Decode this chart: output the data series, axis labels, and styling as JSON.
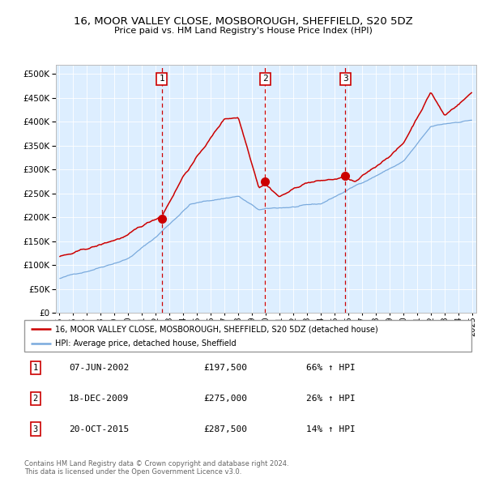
{
  "title1": "16, MOOR VALLEY CLOSE, MOSBOROUGH, SHEFFIELD, S20 5DZ",
  "title2": "Price paid vs. HM Land Registry's House Price Index (HPI)",
  "legend_line1": "16, MOOR VALLEY CLOSE, MOSBOROUGH, SHEFFIELD, S20 5DZ (detached house)",
  "legend_line2": "HPI: Average price, detached house, Sheffield",
  "transactions": [
    {
      "num": 1,
      "date": "07-JUN-2002",
      "price": 197500,
      "pct": "66%",
      "dir": "↑"
    },
    {
      "num": 2,
      "date": "18-DEC-2009",
      "price": 275000,
      "pct": "26%",
      "dir": "↑"
    },
    {
      "num": 3,
      "date": "20-OCT-2015",
      "price": 287500,
      "pct": "14%",
      "dir": "↑"
    }
  ],
  "copyright": "Contains HM Land Registry data © Crown copyright and database right 2024.\nThis data is licensed under the Open Government Licence v3.0.",
  "red_color": "#cc0000",
  "blue_color": "#7aaadd",
  "bg_color": "#ddeeff",
  "ylim": [
    0,
    520000
  ],
  "yticks": [
    0,
    50000,
    100000,
    150000,
    200000,
    250000,
    300000,
    350000,
    400000,
    450000,
    500000
  ],
  "vline_dates": [
    2002.44,
    2009.96,
    2015.79
  ],
  "vline_labels": [
    "1",
    "2",
    "3"
  ],
  "transaction_dates_num": [
    2002.44,
    2009.96,
    2015.79
  ],
  "transaction_prices": [
    197500,
    275000,
    287500
  ]
}
